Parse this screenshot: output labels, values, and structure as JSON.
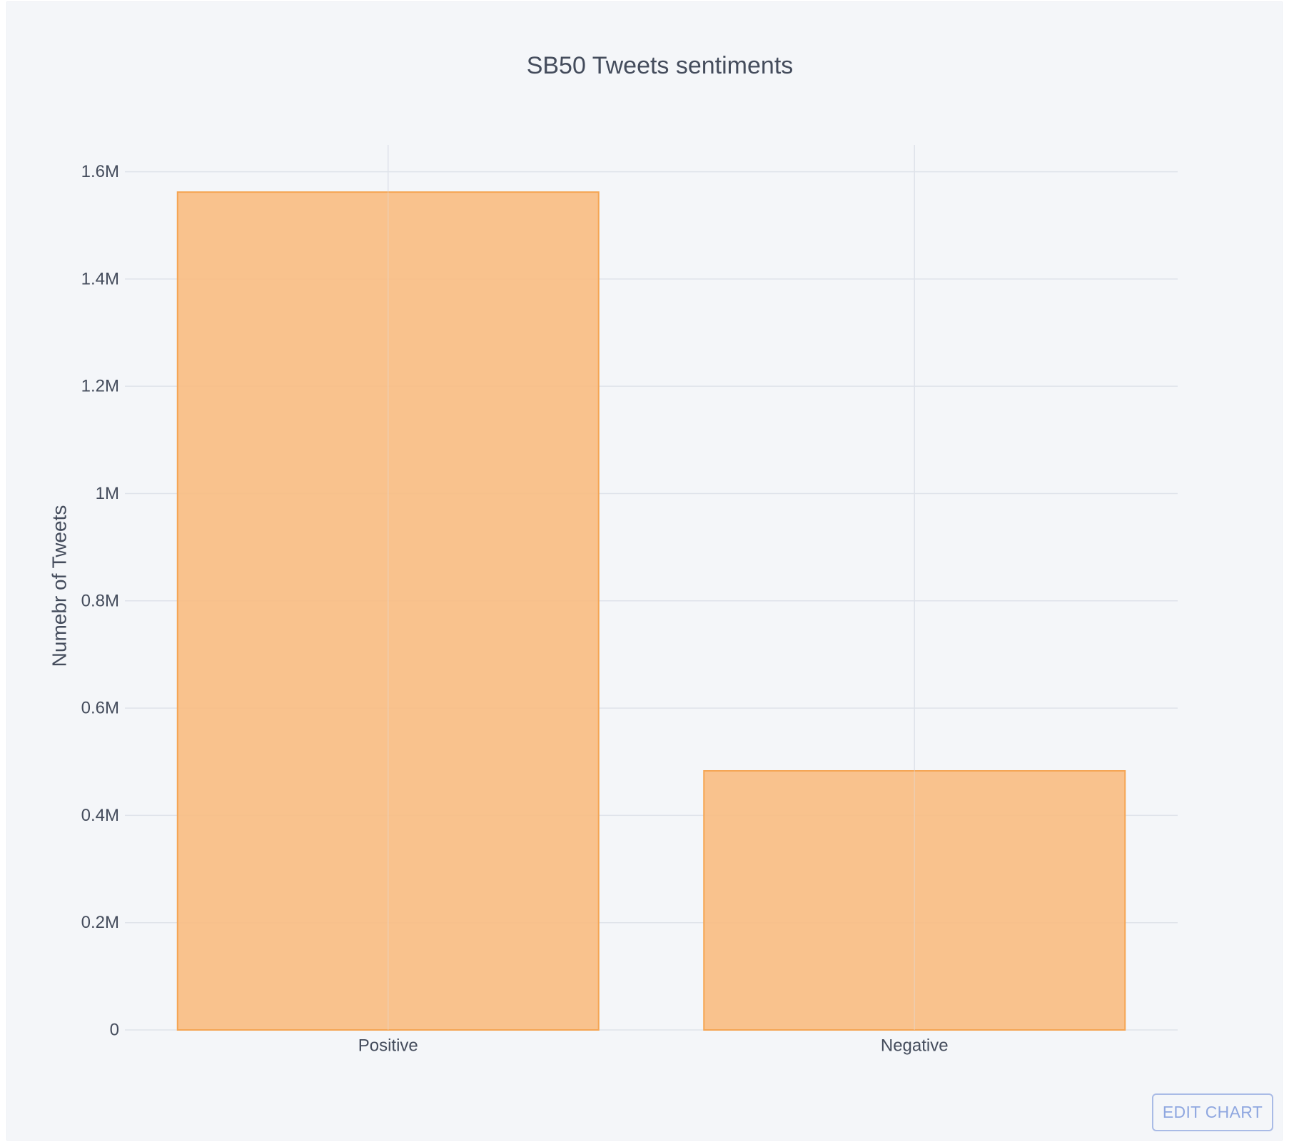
{
  "chart_data": {
    "type": "bar",
    "title": "SB50 Tweets sentiments",
    "xlabel": "",
    "ylabel": "Numebr of Tweets",
    "categories": [
      "Positive",
      "Negative"
    ],
    "values": [
      1562000,
      483000
    ],
    "ylim": [
      0,
      1650000
    ],
    "yticks": [
      0,
      200000,
      400000,
      600000,
      800000,
      1000000,
      1200000,
      1400000,
      1600000
    ],
    "ytick_labels": [
      "0",
      "0.2M",
      "0.4M",
      "0.6M",
      "0.8M",
      "1M",
      "1.2M",
      "1.4M",
      "1.6M"
    ],
    "grid": true,
    "legend": "none",
    "bar_fill": "#f9bd83",
    "bar_stroke": "#f5a553",
    "grid_color": "#dfe3ea",
    "text_color": "#444c5c"
  },
  "edit_button": {
    "label": "EDIT CHART"
  }
}
